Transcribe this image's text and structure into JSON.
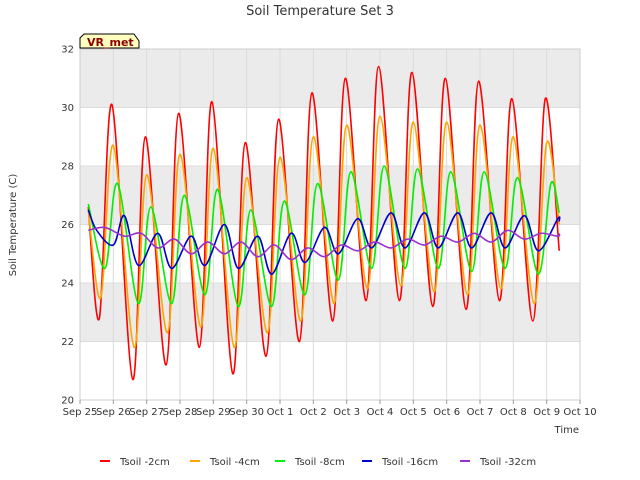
{
  "chart_data": {
    "type": "line",
    "title": "Soil Temperature Set 3",
    "xlabel": "Time",
    "ylabel": "Soil Temperature (C)",
    "badge": "VR_met",
    "ylim": [
      20,
      32
    ],
    "yticks": [
      20,
      22,
      24,
      26,
      28,
      30,
      32
    ],
    "xlim": [
      "Sep 25",
      "Oct 10"
    ],
    "xtick_labels": [
      "Sep 25",
      "Sep 26",
      "Sep 27",
      "Sep 28",
      "Sep 29",
      "Sep 30",
      "Oct 1",
      "Oct 2",
      "Oct 3",
      "Oct 4",
      "Oct 5",
      "Oct 6",
      "Oct 7",
      "Oct 8",
      "Oct 9",
      "Oct 10"
    ],
    "grid": true,
    "legend_position": "bottom",
    "colors": {
      "band": "#ebebeb",
      "grid": "#dcdcdc",
      "badge_fill": "#ffffc0",
      "badge_text": "#8b0000"
    },
    "x": [
      "Sep 25",
      "Sep 25 12:00",
      "Sep 26",
      "Sep 26 12:00",
      "Sep 27",
      "Sep 27 12:00",
      "Sep 28",
      "Sep 28 12:00",
      "Sep 29",
      "Sep 29 12:00",
      "Sep 30",
      "Sep 30 12:00",
      "Oct 1",
      "Oct 1 12:00",
      "Oct 2",
      "Oct 2 12:00",
      "Oct 3",
      "Oct 3 12:00",
      "Oct 4",
      "Oct 4 12:00",
      "Oct 5",
      "Oct 5 12:00",
      "Oct 6",
      "Oct 6 12:00",
      "Oct 7",
      "Oct 7 12:00",
      "Oct 8",
      "Oct 8 12:00",
      "Oct 9",
      "Oct 9 12:00"
    ],
    "series": [
      {
        "name": "Tsoil -2cm",
        "color": "#ff0000",
        "points": [
          [
            "Sep 25 06:00",
            26.6
          ],
          [
            "Sep 25 14:00",
            22.8
          ],
          [
            "Sep 25 23:00",
            30.1
          ],
          [
            "Sep 26 14:00",
            20.7
          ],
          [
            "Sep 26 23:00",
            29.0
          ],
          [
            "Sep 27 14:00",
            21.2
          ],
          [
            "Sep 27 23:00",
            29.8
          ],
          [
            "Sep 28 14:00",
            21.8
          ],
          [
            "Sep 28 23:00",
            30.2
          ],
          [
            "Sep 29 14:00",
            20.9
          ],
          [
            "Sep 29 23:00",
            28.8
          ],
          [
            "Sep 30 14:00",
            21.5
          ],
          [
            "Sep 30 23:00",
            29.6
          ],
          [
            "Oct 1 14:00",
            22.0
          ],
          [
            "Oct 1 23:00",
            30.5
          ],
          [
            "Oct 2 14:00",
            22.7
          ],
          [
            "Oct 2 23:00",
            31.0
          ],
          [
            "Oct 3 14:00",
            23.4
          ],
          [
            "Oct 3 23:00",
            31.4
          ],
          [
            "Oct 4 14:00",
            23.4
          ],
          [
            "Oct 4 23:00",
            31.2
          ],
          [
            "Oct 5 14:00",
            23.2
          ],
          [
            "Oct 5 23:00",
            31.0
          ],
          [
            "Oct 6 14:00",
            23.1
          ],
          [
            "Oct 6 23:00",
            30.9
          ],
          [
            "Oct 7 14:00",
            23.4
          ],
          [
            "Oct 7 23:00",
            30.3
          ],
          [
            "Oct 8 14:00",
            22.7
          ],
          [
            "Oct 8 23:00",
            30.3
          ],
          [
            "Oct 9 09:00",
            25.1
          ]
        ]
      },
      {
        "name": "Tsoil -4cm",
        "color": "#ffa500",
        "points": [
          [
            "Sep 25 06:00",
            26.5
          ],
          [
            "Sep 25 15:00",
            23.5
          ],
          [
            "Sep 26 00:00",
            28.7
          ],
          [
            "Sep 26 15:00",
            21.8
          ],
          [
            "Sep 27 00:00",
            27.7
          ],
          [
            "Sep 27 15:00",
            22.3
          ],
          [
            "Sep 28 00:00",
            28.4
          ],
          [
            "Sep 28 15:00",
            22.5
          ],
          [
            "Sep 29 00:00",
            28.6
          ],
          [
            "Sep 29 15:00",
            21.8
          ],
          [
            "Sep 30 00:00",
            27.6
          ],
          [
            "Sep 30 15:00",
            22.3
          ],
          [
            "Oct 1 00:00",
            28.3
          ],
          [
            "Oct 1 15:00",
            22.7
          ],
          [
            "Oct 2 00:00",
            29.0
          ],
          [
            "Oct 2 15:00",
            23.3
          ],
          [
            "Oct 3 00:00",
            29.4
          ],
          [
            "Oct 3 15:00",
            23.8
          ],
          [
            "Oct 4 00:00",
            29.7
          ],
          [
            "Oct 4 15:00",
            23.9
          ],
          [
            "Oct 5 00:00",
            29.5
          ],
          [
            "Oct 5 15:00",
            23.7
          ],
          [
            "Oct 6 00:00",
            29.5
          ],
          [
            "Oct 6 15:00",
            23.6
          ],
          [
            "Oct 7 00:00",
            29.4
          ],
          [
            "Oct 7 15:00",
            23.8
          ],
          [
            "Oct 8 00:00",
            29.0
          ],
          [
            "Oct 8 15:00",
            23.3
          ],
          [
            "Oct 9 00:00",
            28.8
          ],
          [
            "Oct 9 09:00",
            26.0
          ]
        ]
      },
      {
        "name": "Tsoil -8cm",
        "color": "#00ee00",
        "points": [
          [
            "Sep 25 06:00",
            26.7
          ],
          [
            "Sep 25 18:00",
            24.5
          ],
          [
            "Sep 26 03:00",
            27.4
          ],
          [
            "Sep 26 18:00",
            23.3
          ],
          [
            "Sep 27 03:00",
            26.6
          ],
          [
            "Sep 27 18:00",
            23.3
          ],
          [
            "Sep 28 03:00",
            27.0
          ],
          [
            "Sep 28 18:00",
            23.6
          ],
          [
            "Sep 29 03:00",
            27.2
          ],
          [
            "Sep 29 18:00",
            23.2
          ],
          [
            "Sep 30 03:00",
            26.5
          ],
          [
            "Sep 30 18:00",
            23.2
          ],
          [
            "Oct 1 03:00",
            26.8
          ],
          [
            "Oct 1 18:00",
            23.6
          ],
          [
            "Oct 2 03:00",
            27.4
          ],
          [
            "Oct 2 18:00",
            24.1
          ],
          [
            "Oct 3 03:00",
            27.8
          ],
          [
            "Oct 3 18:00",
            24.5
          ],
          [
            "Oct 4 03:00",
            28.0
          ],
          [
            "Oct 4 18:00",
            24.5
          ],
          [
            "Oct 5 03:00",
            27.9
          ],
          [
            "Oct 5 18:00",
            24.5
          ],
          [
            "Oct 6 03:00",
            27.8
          ],
          [
            "Oct 6 18:00",
            24.4
          ],
          [
            "Oct 7 03:00",
            27.8
          ],
          [
            "Oct 7 18:00",
            24.5
          ],
          [
            "Oct 8 03:00",
            27.6
          ],
          [
            "Oct 8 18:00",
            24.3
          ],
          [
            "Oct 9 03:00",
            27.4
          ],
          [
            "Oct 9 09:00",
            26.4
          ]
        ]
      },
      {
        "name": "Tsoil -16cm",
        "color": "#0000cc",
        "points": [
          [
            "Sep 25 06:00",
            26.5
          ],
          [
            "Sep 25 12:00",
            25.8
          ],
          [
            "Sep 26 00:00",
            25.3
          ],
          [
            "Sep 26 08:00",
            26.3
          ],
          [
            "Sep 26 18:00",
            24.6
          ],
          [
            "Sep 27 08:00",
            25.7
          ],
          [
            "Sep 27 18:00",
            24.5
          ],
          [
            "Sep 28 08:00",
            25.6
          ],
          [
            "Sep 28 18:00",
            24.6
          ],
          [
            "Sep 29 08:00",
            26.0
          ],
          [
            "Sep 29 18:00",
            24.5
          ],
          [
            "Sep 30 08:00",
            25.6
          ],
          [
            "Sep 30 18:00",
            24.3
          ],
          [
            "Oct 1 08:00",
            25.7
          ],
          [
            "Oct 1 18:00",
            24.7
          ],
          [
            "Oct 2 08:00",
            25.9
          ],
          [
            "Oct 2 18:00",
            25.0
          ],
          [
            "Oct 3 08:00",
            26.2
          ],
          [
            "Oct 3 18:00",
            25.2
          ],
          [
            "Oct 4 08:00",
            26.4
          ],
          [
            "Oct 4 18:00",
            25.2
          ],
          [
            "Oct 5 08:00",
            26.4
          ],
          [
            "Oct 5 18:00",
            25.2
          ],
          [
            "Oct 6 08:00",
            26.4
          ],
          [
            "Oct 6 18:00",
            25.2
          ],
          [
            "Oct 7 08:00",
            26.4
          ],
          [
            "Oct 7 18:00",
            25.2
          ],
          [
            "Oct 8 08:00",
            26.3
          ],
          [
            "Oct 8 18:00",
            25.1
          ],
          [
            "Oct 9 08:00",
            26.2
          ],
          [
            "Oct 9 09:00",
            26.1
          ]
        ]
      },
      {
        "name": "Tsoil -32cm",
        "color": "#9932cc",
        "points": [
          [
            "Sep 25 06:00",
            25.8
          ],
          [
            "Sep 25 18:00",
            25.9
          ],
          [
            "Sep 26 08:00",
            25.6
          ],
          [
            "Sep 26 20:00",
            25.7
          ],
          [
            "Sep 27 08:00",
            25.2
          ],
          [
            "Sep 27 20:00",
            25.5
          ],
          [
            "Sep 28 08:00",
            25.0
          ],
          [
            "Sep 28 20:00",
            25.4
          ],
          [
            "Sep 29 08:00",
            25.0
          ],
          [
            "Sep 29 20:00",
            25.4
          ],
          [
            "Sep 30 08:00",
            24.9
          ],
          [
            "Sep 30 20:00",
            25.3
          ],
          [
            "Oct 1 08:00",
            24.8
          ],
          [
            "Oct 1 20:00",
            25.2
          ],
          [
            "Oct 2 08:00",
            24.9
          ],
          [
            "Oct 2 20:00",
            25.3
          ],
          [
            "Oct 3 08:00",
            25.1
          ],
          [
            "Oct 3 20:00",
            25.4
          ],
          [
            "Oct 4 08:00",
            25.2
          ],
          [
            "Oct 4 20:00",
            25.5
          ],
          [
            "Oct 5 08:00",
            25.3
          ],
          [
            "Oct 5 20:00",
            25.6
          ],
          [
            "Oct 6 08:00",
            25.4
          ],
          [
            "Oct 6 20:00",
            25.7
          ],
          [
            "Oct 7 08:00",
            25.4
          ],
          [
            "Oct 7 20:00",
            25.8
          ],
          [
            "Oct 8 08:00",
            25.5
          ],
          [
            "Oct 8 20:00",
            25.7
          ],
          [
            "Oct 9 08:00",
            25.6
          ],
          [
            "Oct 9 09:00",
            25.7
          ]
        ]
      }
    ]
  }
}
